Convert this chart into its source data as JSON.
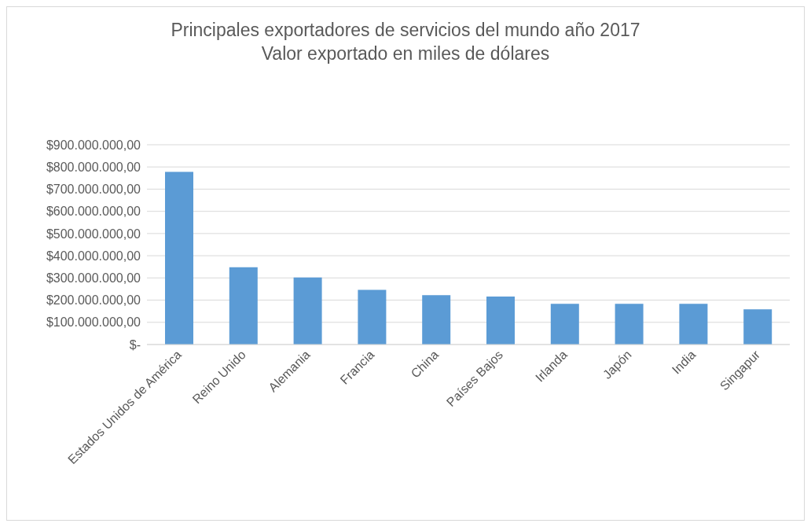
{
  "chart_data": {
    "type": "bar",
    "title": "Principales exportadores de servicios del mundo  año 2017\nValor exportado en miles de dólares",
    "categories": [
      "Estados Unidos de América",
      "Reino Unido",
      "Alemania",
      "Francia",
      "China",
      "Países Bajos",
      "Irlanda",
      "Japón",
      "India",
      "Singapur"
    ],
    "values": [
      778000000,
      348000000,
      302000000,
      246000000,
      222000000,
      216000000,
      183000000,
      183000000,
      183000000,
      159000000
    ],
    "color": "#5b9bd5",
    "ylim": [
      0,
      900000000
    ],
    "yticks": [
      {
        "value": 0,
        "label": "$-"
      },
      {
        "value": 100000000,
        "label": "$100.000.000,00"
      },
      {
        "value": 200000000,
        "label": "$200.000.000,00"
      },
      {
        "value": 300000000,
        "label": "$300.000.000,00"
      },
      {
        "value": 400000000,
        "label": "$400.000.000,00"
      },
      {
        "value": 500000000,
        "label": "$500.000.000,00"
      },
      {
        "value": 600000000,
        "label": "$600.000.000,00"
      },
      {
        "value": 700000000,
        "label": "$700.000.000,00"
      },
      {
        "value": 800000000,
        "label": "$800.000.000,00"
      },
      {
        "value": 900000000,
        "label": "$900.000.000,00"
      }
    ],
    "grid": "y"
  }
}
